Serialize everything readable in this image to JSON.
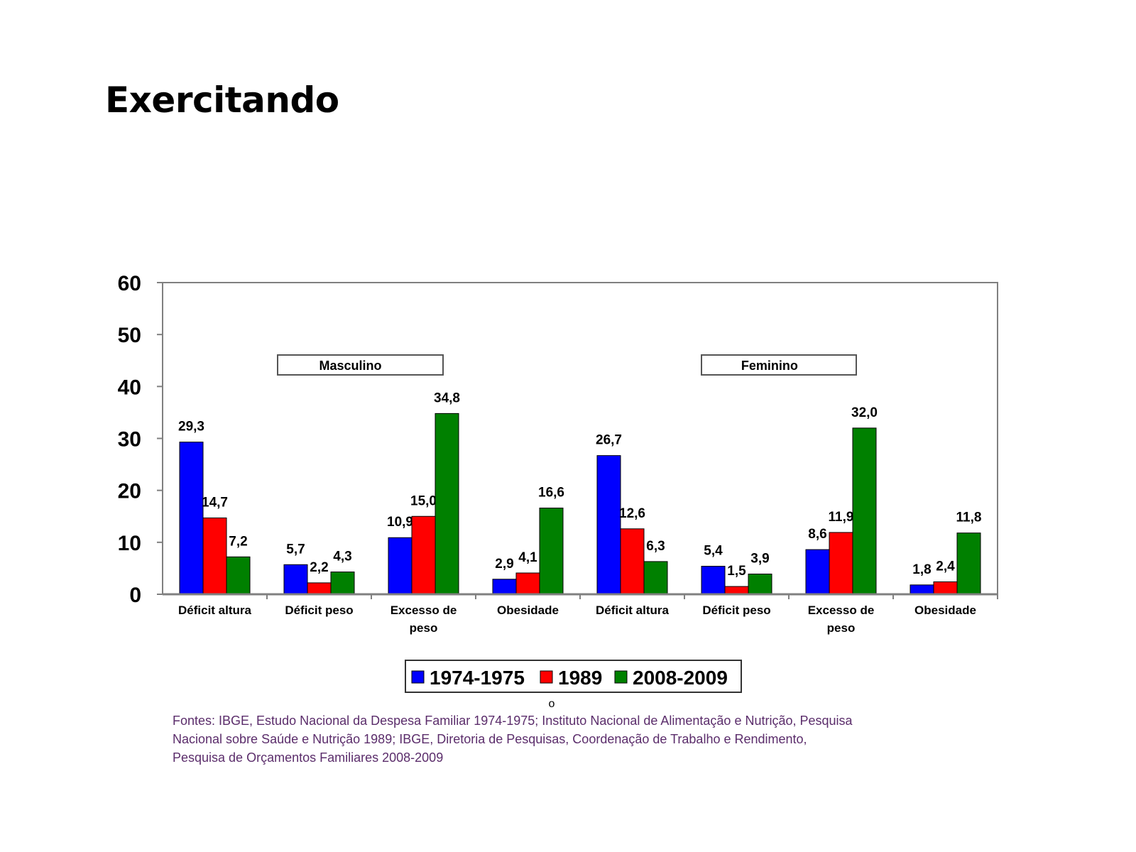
{
  "slide": {
    "title": "Exercitando",
    "marker": "o",
    "source_lines": [
      "Fontes: IBGE, Estudo Nacional da Despesa Familiar 1974-1975; Instituto Nacional de Alimentação e Nutrição, Pesquisa",
      "Nacional sobre Saúde e Nutrição 1989; IBGE, Diretoria de Pesquisas, Coordenação de Trabalho e Rendimento,",
      "Pesquisa de Orçamentos Familiares 2008-2009"
    ]
  },
  "chart_data": {
    "type": "bar",
    "title": "",
    "xlabel": "",
    "ylabel": "",
    "ylim": [
      0,
      60
    ],
    "yticks": [
      "0",
      "10",
      "20",
      "30",
      "40",
      "50",
      "60"
    ],
    "grid": false,
    "legend_position": "bottom",
    "group_labels": [
      "Masculino",
      "Feminino"
    ],
    "categories": [
      [
        "Déficit altura"
      ],
      [
        "Déficit peso"
      ],
      [
        "Excesso de",
        "peso"
      ],
      [
        "Obesidade"
      ],
      [
        "Déficit altura"
      ],
      [
        "Déficit peso"
      ],
      [
        "Excesso de",
        "peso"
      ],
      [
        "Obesidade"
      ]
    ],
    "series": [
      {
        "name": "1974-1975",
        "color": "#0000ff",
        "values": [
          29.3,
          5.7,
          10.9,
          2.9,
          26.7,
          5.4,
          8.6,
          1.8
        ],
        "labels": [
          "29,3",
          "5,7",
          "10,9",
          "2,9",
          "26,7",
          "5,4",
          "8,6",
          "1,8"
        ]
      },
      {
        "name": "1989",
        "color": "#ff0000",
        "values": [
          14.7,
          2.2,
          15.0,
          4.1,
          12.6,
          1.5,
          11.9,
          2.4
        ],
        "labels": [
          "14,7",
          "2,2",
          "15,0",
          "4,1",
          "12,6",
          "1,5",
          "11,9",
          "2,4"
        ]
      },
      {
        "name": "2008-2009",
        "color": "#008000",
        "values": [
          7.2,
          4.3,
          34.8,
          16.6,
          6.3,
          3.9,
          32.0,
          11.8
        ],
        "labels": [
          "7,2",
          "4,3",
          "34,8",
          "16,6",
          "6,3",
          "3,9",
          "32,0",
          "11,8"
        ]
      }
    ]
  }
}
